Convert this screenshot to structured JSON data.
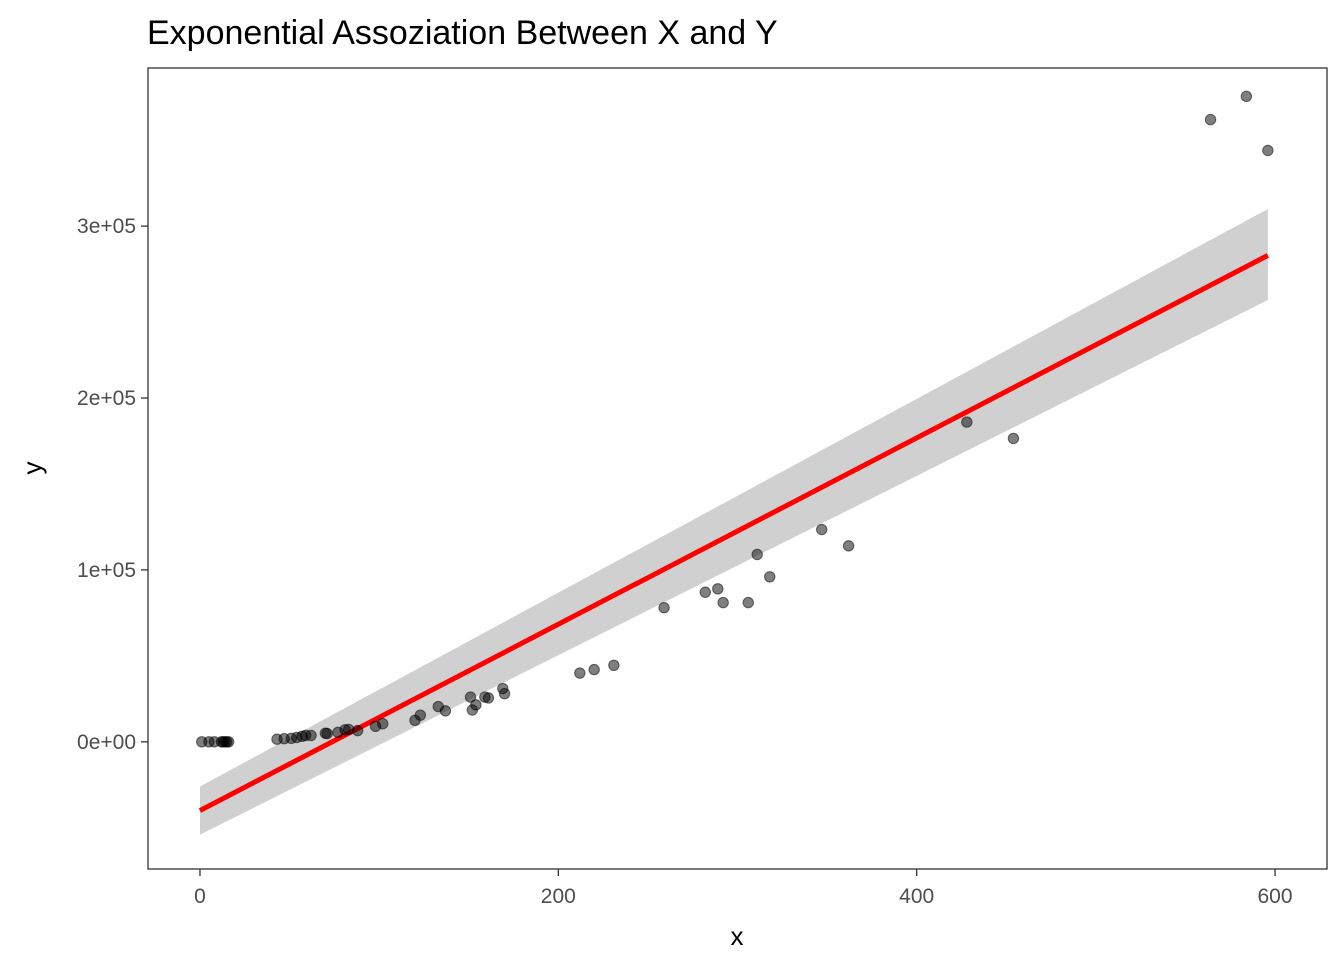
{
  "chart_data": {
    "type": "scatter",
    "title": "Exponential Assoziation Between X and Y",
    "xlabel": "x",
    "ylabel": "y",
    "xlim": [
      -29,
      629
    ],
    "ylim": [
      -74000,
      392000
    ],
    "x_ticks": [
      {
        "value": 0,
        "label": "0"
      },
      {
        "value": 200,
        "label": "200"
      },
      {
        "value": 400,
        "label": "400"
      },
      {
        "value": 600,
        "label": "600"
      }
    ],
    "y_ticks": [
      {
        "value": 0,
        "label": "0e+00"
      },
      {
        "value": 100000,
        "label": "1e+05"
      },
      {
        "value": 200000,
        "label": "2e+05"
      },
      {
        "value": 300000,
        "label": "3e+05"
      }
    ],
    "grid": false,
    "legend": "none",
    "colors": {
      "points": "#000000",
      "fit_line": "#ff0000",
      "confidence_band": "#d0d0d0",
      "panel_border": "#333333",
      "tick_text": "#4d4d4d"
    },
    "points": [
      {
        "x": 1,
        "y": 0
      },
      {
        "x": 5,
        "y": 0
      },
      {
        "x": 8,
        "y": 0
      },
      {
        "x": 12,
        "y": 0
      },
      {
        "x": 13,
        "y": 0
      },
      {
        "x": 14,
        "y": 0
      },
      {
        "x": 15,
        "y": 0
      },
      {
        "x": 16,
        "y": 0
      },
      {
        "x": 43,
        "y": 1500
      },
      {
        "x": 47,
        "y": 1800
      },
      {
        "x": 51,
        "y": 2000
      },
      {
        "x": 54,
        "y": 2500
      },
      {
        "x": 57,
        "y": 3200
      },
      {
        "x": 59,
        "y": 3700
      },
      {
        "x": 62,
        "y": 3700
      },
      {
        "x": 70,
        "y": 5000
      },
      {
        "x": 71,
        "y": 4800
      },
      {
        "x": 77,
        "y": 5500
      },
      {
        "x": 81,
        "y": 7000
      },
      {
        "x": 83,
        "y": 7200
      },
      {
        "x": 88,
        "y": 6500
      },
      {
        "x": 98,
        "y": 9000
      },
      {
        "x": 102,
        "y": 10500
      },
      {
        "x": 120,
        "y": 12500
      },
      {
        "x": 123,
        "y": 15500
      },
      {
        "x": 133,
        "y": 20500
      },
      {
        "x": 137,
        "y": 18000
      },
      {
        "x": 151,
        "y": 26000
      },
      {
        "x": 152,
        "y": 18500
      },
      {
        "x": 154,
        "y": 21500
      },
      {
        "x": 159,
        "y": 26000
      },
      {
        "x": 161,
        "y": 25500
      },
      {
        "x": 169,
        "y": 31000
      },
      {
        "x": 170,
        "y": 28000
      },
      {
        "x": 212,
        "y": 40000
      },
      {
        "x": 220,
        "y": 42000
      },
      {
        "x": 231,
        "y": 44500
      },
      {
        "x": 259,
        "y": 78000
      },
      {
        "x": 282,
        "y": 87000
      },
      {
        "x": 289,
        "y": 89000
      },
      {
        "x": 292,
        "y": 81000
      },
      {
        "x": 306,
        "y": 81000
      },
      {
        "x": 311,
        "y": 109000
      },
      {
        "x": 318,
        "y": 96000
      },
      {
        "x": 347,
        "y": 123500
      },
      {
        "x": 362,
        "y": 114000
      },
      {
        "x": 428,
        "y": 186000
      },
      {
        "x": 454,
        "y": 176500
      },
      {
        "x": 564,
        "y": 362000
      },
      {
        "x": 584,
        "y": 375500
      },
      {
        "x": 596,
        "y": 344000
      }
    ],
    "fit_line": {
      "x": [
        0,
        596
      ],
      "y": [
        -40000,
        283000
      ]
    },
    "confidence_band": {
      "x": [
        0,
        596
      ],
      "lower": [
        -54000,
        257000
      ],
      "upper": [
        -26000,
        310000
      ]
    }
  }
}
